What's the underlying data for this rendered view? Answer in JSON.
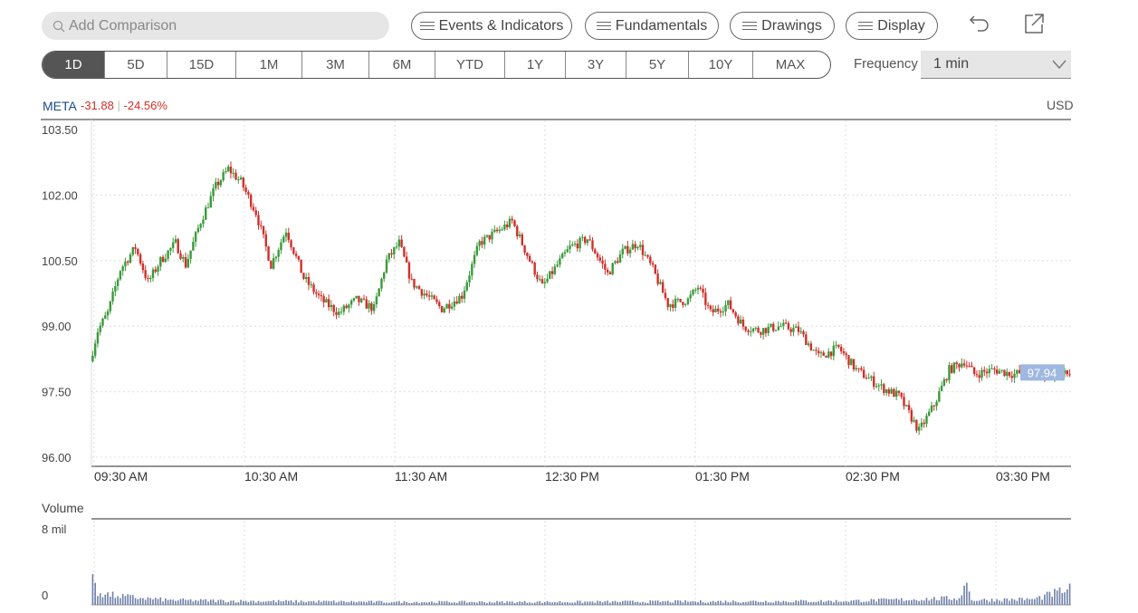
{
  "toolbar": {
    "search_placeholder": "Add Comparison",
    "events_label": "Events & Indicators",
    "fundamentals_label": "Fundamentals",
    "drawings_label": "Drawings",
    "display_label": "Display"
  },
  "ranges": [
    "1D",
    "5D",
    "15D",
    "1M",
    "3M",
    "6M",
    "YTD",
    "1Y",
    "3Y",
    "5Y",
    "10Y",
    "MAX"
  ],
  "active_range": "1D",
  "frequency": {
    "label": "Frequency",
    "value": "1 min"
  },
  "quote": {
    "ticker": "META",
    "change": "-31.88",
    "change_pct": "-24.56%",
    "separator": "|",
    "currency": "USD"
  },
  "colors": {
    "up": "#3a9a3a",
    "down": "#d0302b",
    "ticker": "#1a4a8a",
    "volume": "#6e7fa8",
    "last_price_bg": "#9fb8e0"
  },
  "chart_data": {
    "type": "candlestick",
    "y_ticks": [
      "103.50",
      "102.00",
      "100.50",
      "99.00",
      "97.50",
      "96.00"
    ],
    "ylim": [
      96.0,
      103.5
    ],
    "x_ticks": [
      "09:30 AM",
      "10:30 AM",
      "11:30 AM",
      "12:30 PM",
      "01:30 PM",
      "02:30 PM",
      "03:30 PM"
    ],
    "last_price": "97.94",
    "price_path": [
      [
        "09:30",
        98.2
      ],
      [
        "09:33",
        98.9
      ],
      [
        "09:37",
        99.3
      ],
      [
        "09:42",
        100.3
      ],
      [
        "09:48",
        100.8
      ],
      [
        "09:53",
        100.0
      ],
      [
        "09:58",
        100.5
      ],
      [
        "10:04",
        100.9
      ],
      [
        "10:08",
        100.4
      ],
      [
        "10:14",
        101.4
      ],
      [
        "10:20",
        102.2
      ],
      [
        "10:25",
        102.6
      ],
      [
        "10:30",
        102.3
      ],
      [
        "10:36",
        101.6
      ],
      [
        "10:42",
        100.4
      ],
      [
        "10:48",
        101.2
      ],
      [
        "10:55",
        100.1
      ],
      [
        "11:02",
        99.6
      ],
      [
        "11:09",
        99.3
      ],
      [
        "11:16",
        99.6
      ],
      [
        "11:23",
        99.4
      ],
      [
        "11:28",
        100.5
      ],
      [
        "11:33",
        100.9
      ],
      [
        "11:38",
        100.0
      ],
      [
        "11:44",
        99.7
      ],
      [
        "11:50",
        99.4
      ],
      [
        "11:58",
        99.7
      ],
      [
        "12:05",
        100.9
      ],
      [
        "12:13",
        101.2
      ],
      [
        "12:18",
        101.4
      ],
      [
        "12:25",
        100.5
      ],
      [
        "12:30",
        99.9
      ],
      [
        "12:36",
        100.4
      ],
      [
        "12:41",
        100.8
      ],
      [
        "12:48",
        101.0
      ],
      [
        "12:56",
        100.2
      ],
      [
        "13:02",
        100.7
      ],
      [
        "13:08",
        100.9
      ],
      [
        "13:14",
        100.3
      ],
      [
        "13:20",
        99.5
      ],
      [
        "13:28",
        99.6
      ],
      [
        "13:32",
        99.9
      ],
      [
        "13:37",
        99.3
      ],
      [
        "13:44",
        99.5
      ],
      [
        "13:50",
        99.0
      ],
      [
        "13:56",
        98.9
      ],
      [
        "14:05",
        99.0
      ],
      [
        "14:12",
        98.9
      ],
      [
        "14:20",
        98.3
      ],
      [
        "14:28",
        98.5
      ],
      [
        "14:35",
        98.0
      ],
      [
        "14:45",
        97.6
      ],
      [
        "14:52",
        97.4
      ],
      [
        "15:00",
        96.6
      ],
      [
        "15:06",
        97.2
      ],
      [
        "15:12",
        98.0
      ],
      [
        "15:18",
        98.2
      ],
      [
        "15:22",
        97.9
      ],
      [
        "15:30",
        98.0
      ],
      [
        "15:38",
        97.9
      ],
      [
        "15:45",
        98.0
      ],
      [
        "15:50",
        97.9
      ]
    ],
    "volume_axis": {
      "label": "Volume",
      "max_label": "8 mil",
      "min_label": "0",
      "max": 8
    },
    "volume_path": [
      [
        "09:30",
        3.2
      ],
      [
        "09:33",
        1.2
      ],
      [
        "09:40",
        0.9
      ],
      [
        "09:50",
        0.7
      ],
      [
        "10:00",
        0.5
      ],
      [
        "10:30",
        0.4
      ],
      [
        "11:30",
        0.3
      ],
      [
        "12:30",
        0.3
      ],
      [
        "13:30",
        0.35
      ],
      [
        "14:30",
        0.4
      ],
      [
        "15:15",
        0.7
      ],
      [
        "15:18",
        2.3
      ],
      [
        "15:20",
        0.5
      ],
      [
        "15:45",
        0.6
      ],
      [
        "15:58",
        1.6
      ]
    ]
  }
}
